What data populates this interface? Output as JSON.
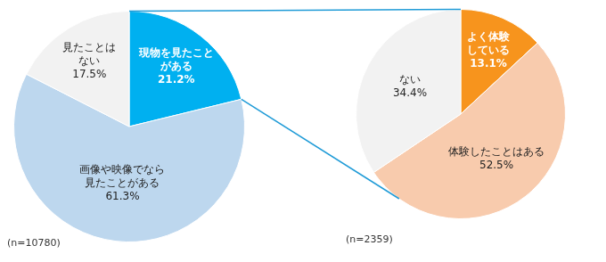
{
  "chart_data": [
    {
      "type": "pie",
      "categories": [
        "現物を見たことがある",
        "画像や映像でなら見たことがある",
        "見たことはない"
      ],
      "values": [
        21.2,
        61.3,
        17.5
      ],
      "value_labels": [
        "21.2%",
        "61.3%",
        "17.5%"
      ],
      "colors": [
        "#00B0F0",
        "#BDD7EE",
        "#F2F2F2"
      ],
      "data_labels": true,
      "annotations": [
        "(n=10780)"
      ]
    },
    {
      "type": "pie",
      "categories": [
        "よく体験している",
        "体験したことはある",
        "ない"
      ],
      "values": [
        13.1,
        52.5,
        34.4
      ],
      "value_labels": [
        "13.1%",
        "52.5%",
        "34.4%"
      ],
      "colors": [
        "#F7941D",
        "#F8CBAD",
        "#F2F2F2"
      ],
      "data_labels": true,
      "annotations": [
        "(n=2359)"
      ]
    }
  ]
}
